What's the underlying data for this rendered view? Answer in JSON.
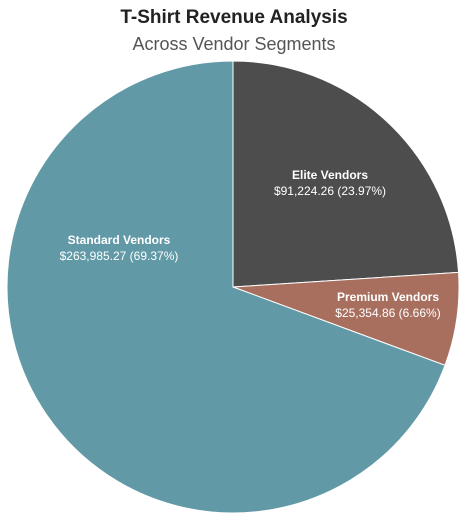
{
  "chart_data": {
    "type": "pie",
    "title": "T-Shirt Revenue Analysis",
    "subtitle": "Across Vendor Segments",
    "slices": [
      {
        "name": "Elite Vendors",
        "value": 91224.26,
        "value_label": "$91,224.26 (23.97%)",
        "percent": 23.97,
        "color": "#4d4d4d"
      },
      {
        "name": "Premium Vendors",
        "value": 25354.86,
        "value_label": "$25,354.86 (6.66%)",
        "percent": 6.66,
        "color": "#a86f5f"
      },
      {
        "name": "Standard Vendors",
        "value": 263985.27,
        "value_label": "$263,985.27 (69.37%)",
        "percent": 69.37,
        "color": "#6199a7"
      }
    ],
    "start_angle": "12 o'clock",
    "direction": "clockwise"
  }
}
